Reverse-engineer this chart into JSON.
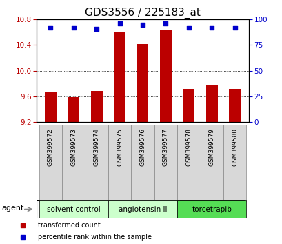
{
  "title": "GDS3556 / 225183_at",
  "categories": [
    "GSM399572",
    "GSM399573",
    "GSM399574",
    "GSM399575",
    "GSM399576",
    "GSM399577",
    "GSM399578",
    "GSM399579",
    "GSM399580"
  ],
  "bar_values": [
    9.66,
    9.59,
    9.68,
    10.6,
    10.42,
    10.63,
    9.72,
    9.77,
    9.72
  ],
  "percentile_values": [
    92,
    92,
    91,
    96,
    95,
    96,
    92,
    92,
    92
  ],
  "ylim_left": [
    9.2,
    10.8
  ],
  "ylim_right": [
    0,
    100
  ],
  "yticks_left": [
    9.2,
    9.6,
    10.0,
    10.4,
    10.8
  ],
  "yticks_right": [
    0,
    25,
    50,
    75,
    100
  ],
  "bar_color": "#bb0000",
  "dot_color": "#0000cc",
  "grid_color": "#000000",
  "bg_color": "#ffffff",
  "groups": [
    {
      "label": "solvent control",
      "start": 0,
      "end": 3,
      "color": "#ccffcc"
    },
    {
      "label": "angiotensin II",
      "start": 3,
      "end": 6,
      "color": "#ccffcc"
    },
    {
      "label": "torcetrapib",
      "start": 6,
      "end": 9,
      "color": "#55dd55"
    }
  ],
  "agent_label": "agent",
  "legend_items": [
    {
      "label": "transformed count",
      "color": "#bb0000"
    },
    {
      "label": "percentile rank within the sample",
      "color": "#0000cc"
    }
  ],
  "title_fontsize": 11,
  "tick_fontsize": 7.5,
  "label_fontsize": 8
}
